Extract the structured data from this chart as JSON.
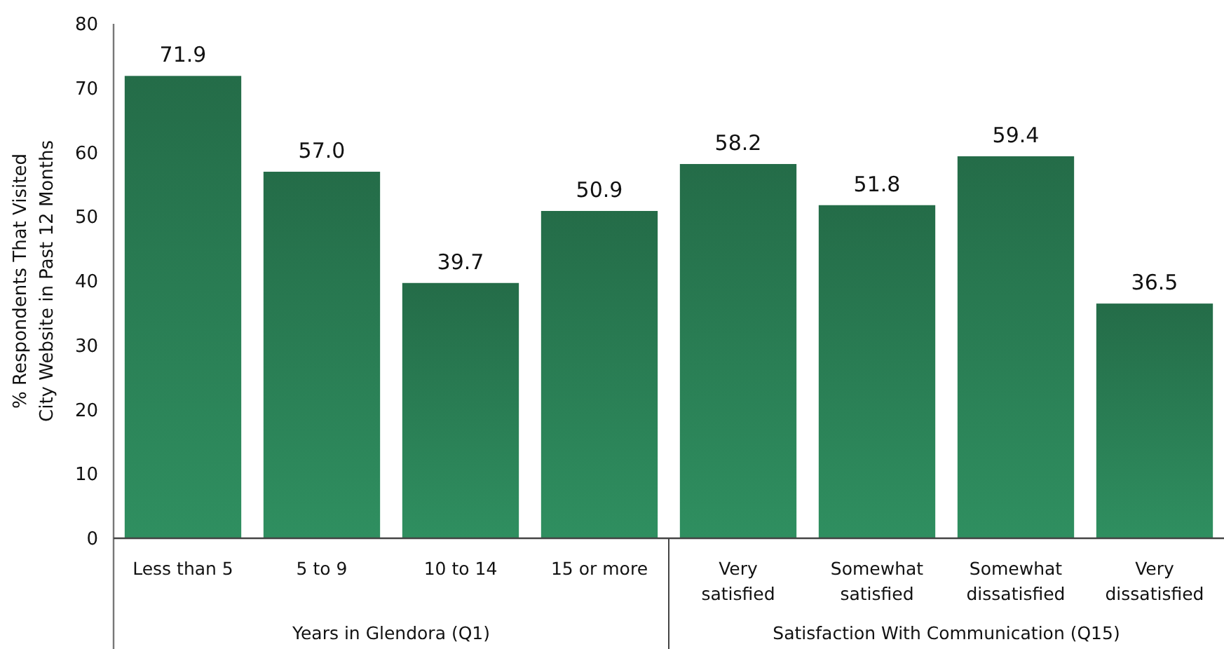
{
  "chart_data": {
    "type": "bar",
    "ylabel": "% Respondents That Visited City Website in Past 12 Months",
    "categories": [
      "Less than 5",
      "5 to 9",
      "10 to 14",
      "15 or more",
      "Very satisfied",
      "Somewhat satisfied",
      "Somewhat dissatisfied",
      "Very dissatisfied"
    ],
    "values": [
      71.9,
      57.0,
      39.7,
      50.9,
      58.2,
      51.8,
      59.4,
      36.5
    ],
    "value_labels": [
      "71.9",
      "57.0",
      "39.7",
      "50.9",
      "58.2",
      "51.8",
      "59.4",
      "36.5"
    ],
    "color": "#297c53",
    "ylim": [
      0,
      80
    ],
    "yticks": [
      0,
      10,
      20,
      30,
      40,
      50,
      60,
      70,
      80
    ],
    "annotations": [
      "Years in Glendora (Q1)",
      "Satisfaction With Communication (Q15)"
    ]
  }
}
